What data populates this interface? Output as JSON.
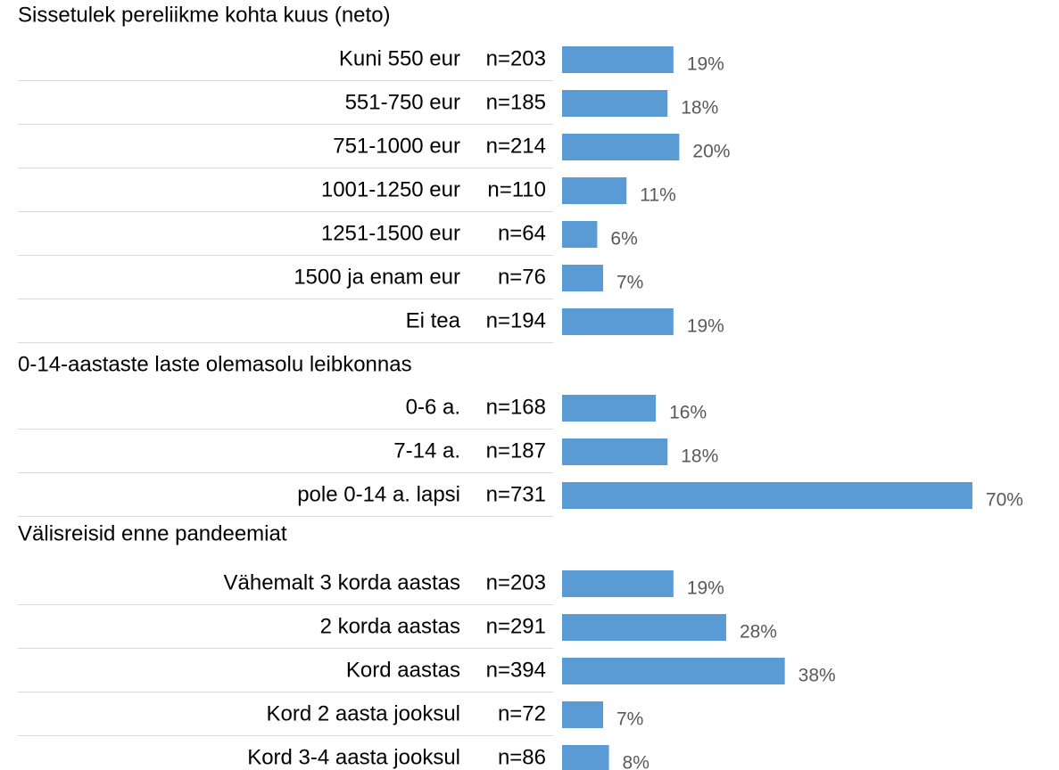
{
  "chart_data": {
    "type": "bar",
    "color": "#5b9bd5",
    "groups": [
      {
        "title": "Sissetulek pereliikme kohta kuus (neto)",
        "categories": [
          "Kuni 550 eur",
          "551-750 eur",
          "751-1000 eur",
          "1001-1250 eur",
          "1251-1500 eur",
          "1500 ja enam eur",
          "Ei tea"
        ],
        "counts": [
          "n=203",
          "n=185",
          "n=214",
          "n=110",
          "n=64",
          "n=76",
          "n=194"
        ],
        "values": [
          19,
          18,
          20,
          11,
          6,
          7,
          19
        ],
        "value_labels": [
          "19%",
          "18%",
          "20%",
          "11%",
          "6%",
          "7%",
          "19%"
        ]
      },
      {
        "title": "0-14-aastaste laste olemasolu leibkonnas",
        "categories": [
          "0-6 a.",
          "7-14 a.",
          "pole 0-14 a. lapsi"
        ],
        "counts": [
          "n=168",
          "n=187",
          "n=731"
        ],
        "values": [
          16,
          18,
          70
        ],
        "value_labels": [
          "16%",
          "18%",
          "70%"
        ]
      },
      {
        "title": "Välisreisid enne pandeemiat",
        "categories": [
          "Vähemalt 3 korda aastas",
          "2 korda aastas",
          "Kord aastas",
          "Kord 2 aasta jooksul",
          "Kord 3-4 aasta jooksul"
        ],
        "counts": [
          "n=203",
          "n=291",
          "n=394",
          "n=72",
          "n=86"
        ],
        "values": [
          19,
          28,
          38,
          7,
          8
        ],
        "value_labels": [
          "19%",
          "28%",
          "38%",
          "7%",
          "8%"
        ]
      }
    ]
  }
}
